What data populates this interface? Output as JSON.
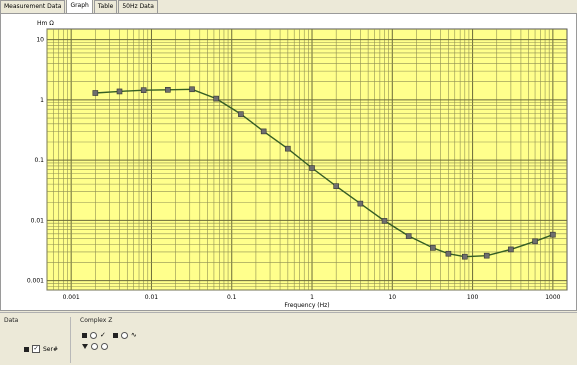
{
  "tabs": [
    {
      "label": "Measurement Data",
      "active": false
    },
    {
      "label": "Graph",
      "active": true
    },
    {
      "label": "Table",
      "active": false
    },
    {
      "label": "50Hz Data",
      "active": false
    }
  ],
  "colors": {
    "plot_bg": "#ffff8c",
    "grid_major": "#6b6b3a",
    "grid_minor": "#8f8f52",
    "line": "#355e24",
    "marker": "#6e6e6e"
  },
  "chart_data": {
    "type": "line",
    "title": "",
    "xlabel": "Frequency (Hz)",
    "ylabel": "Hm Ω",
    "x_scale": "log",
    "y_scale": "log",
    "xlim": [
      0.0005,
      1500
    ],
    "ylim": [
      0.0007,
      15
    ],
    "grid": true,
    "x_ticks": [
      "0.001",
      "0.01",
      "0.1",
      "1",
      "10",
      "100",
      "1000"
    ],
    "y_ticks": [
      "10",
      "1",
      "0.1",
      "0.01",
      "0.001"
    ],
    "series": [
      {
        "x": [
          0.002,
          0.004,
          0.008,
          0.016,
          0.032,
          0.064,
          0.13,
          0.25,
          0.5,
          1,
          2,
          4,
          8,
          16,
          32,
          50,
          80,
          150,
          300,
          600,
          1000
        ],
        "y": [
          1.3,
          1.38,
          1.45,
          1.47,
          1.5,
          1.05,
          0.58,
          0.3,
          0.155,
          0.074,
          0.037,
          0.019,
          0.0098,
          0.0055,
          0.0035,
          0.0028,
          0.0025,
          0.0026,
          0.0033,
          0.0045,
          0.0058
        ]
      }
    ]
  },
  "bottom": {
    "group_a_title": "Data",
    "group_a_check_label": "Ser#",
    "group_b_title": "Complex Z"
  }
}
